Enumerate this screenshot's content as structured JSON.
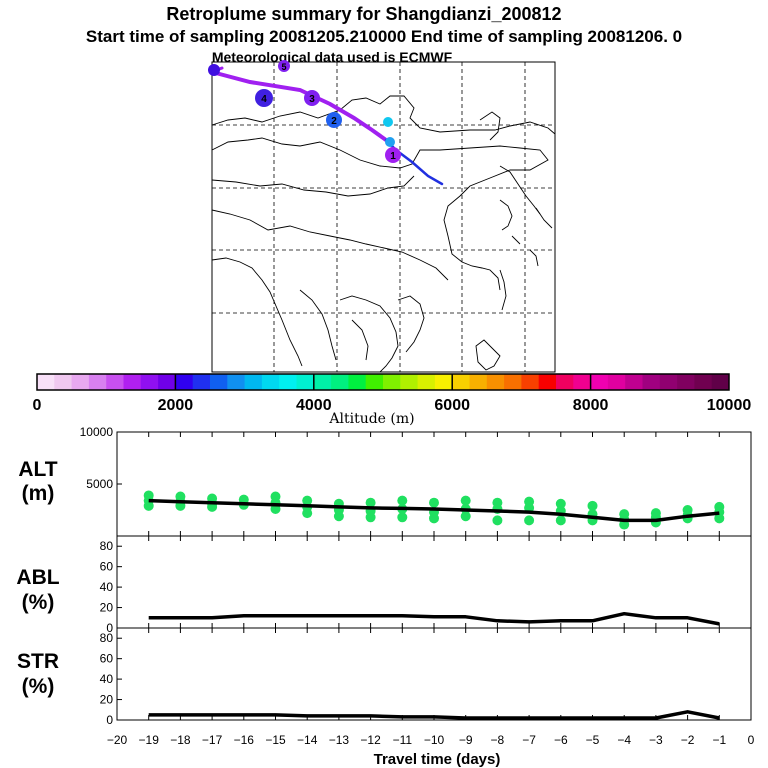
{
  "header": {
    "title": "Retroplume summary for Shangdianzi_200812",
    "sampling_line": "Start time of sampling 20081205.210000     End time of sampling 20081206.     0",
    "met_line": "Meteorological data used is ECMWF"
  },
  "map": {
    "trajectory_labels": [
      "1",
      "2",
      "3",
      "4",
      "5"
    ]
  },
  "colorbar": {
    "ticks": [
      "0",
      "2000",
      "4000",
      "6000",
      "8000",
      "10000"
    ],
    "label": "Altitude (m)",
    "colors": [
      "#f8e0f8",
      "#f0c8f0",
      "#e8a8f0",
      "#d880f0",
      "#c850f0",
      "#b020f0",
      "#9010f0",
      "#7000e8",
      "#3000f0",
      "#2030f0",
      "#1060f0",
      "#1090f0",
      "#00b8f0",
      "#00d8f0",
      "#00f0f0",
      "#00f0d0",
      "#00f0a8",
      "#00f080",
      "#00f040",
      "#40f000",
      "#80f000",
      "#b0f000",
      "#d8f000",
      "#f8f000",
      "#f8d000",
      "#f8b000",
      "#f89000",
      "#f87000",
      "#f84000",
      "#f80000",
      "#f00060",
      "#f00090",
      "#f000b0",
      "#e000a0",
      "#c00090",
      "#a00080",
      "#900070",
      "#800060",
      "#700050",
      "#600048"
    ]
  },
  "panels": {
    "alt": {
      "label1": "ALT",
      "label2": "(m)"
    },
    "abl": {
      "label1": "ABL",
      "label2": "(%)"
    },
    "str": {
      "label1": "STR",
      "label2": "(%)"
    }
  },
  "xaxis": {
    "label": "Travel time (days)"
  },
  "chart_data": [
    {
      "type": "line",
      "name": "ALT",
      "ylabel": "(m)",
      "ylim": [
        0,
        10000
      ],
      "yticks": [
        5000,
        10000
      ],
      "xlim": [
        -20,
        0
      ],
      "x": [
        -19,
        -18,
        -17,
        -16,
        -15,
        -14,
        -13,
        -12,
        -11,
        -10,
        -9,
        -8,
        -7,
        -6,
        -5,
        -4,
        -3,
        -2,
        -1
      ],
      "values": [
        3400,
        3300,
        3200,
        3100,
        3000,
        2900,
        2800,
        2700,
        2650,
        2600,
        2500,
        2400,
        2300,
        2100,
        1800,
        1500,
        1500,
        1900,
        2200
      ],
      "scatter_color": "#20e060",
      "scatter": [
        [
          -19,
          3900
        ],
        [
          -19,
          3400
        ],
        [
          -19,
          2900
        ],
        [
          -18,
          3800
        ],
        [
          -18,
          3300
        ],
        [
          -18,
          2900
        ],
        [
          -17,
          3600
        ],
        [
          -17,
          3100
        ],
        [
          -17,
          2800
        ],
        [
          -16,
          3500
        ],
        [
          -16,
          3000
        ],
        [
          -15,
          3800
        ],
        [
          -15,
          3200
        ],
        [
          -15,
          2600
        ],
        [
          -14,
          3400
        ],
        [
          -14,
          2800
        ],
        [
          -14,
          2200
        ],
        [
          -13,
          3100
        ],
        [
          -13,
          2500
        ],
        [
          -13,
          1900
        ],
        [
          -12,
          3200
        ],
        [
          -12,
          2400
        ],
        [
          -12,
          1800
        ],
        [
          -11,
          3400
        ],
        [
          -11,
          2600
        ],
        [
          -11,
          1800
        ],
        [
          -10,
          3200
        ],
        [
          -10,
          2300
        ],
        [
          -10,
          1700
        ],
        [
          -9,
          3400
        ],
        [
          -9,
          2600
        ],
        [
          -9,
          1900
        ],
        [
          -8,
          3200
        ],
        [
          -8,
          2600
        ],
        [
          -8,
          1500
        ],
        [
          -7,
          3300
        ],
        [
          -7,
          2700
        ],
        [
          -7,
          1500
        ],
        [
          -6,
          3100
        ],
        [
          -6,
          2400
        ],
        [
          -6,
          1500
        ],
        [
          -5,
          2900
        ],
        [
          -5,
          2100
        ],
        [
          -5,
          1500
        ],
        [
          -4,
          2100
        ],
        [
          -4,
          1600
        ],
        [
          -4,
          1100
        ],
        [
          -3,
          2200
        ],
        [
          -3,
          1800
        ],
        [
          -3,
          1300
        ],
        [
          -2,
          2500
        ],
        [
          -2,
          2000
        ],
        [
          -2,
          1700
        ],
        [
          -1,
          2800
        ],
        [
          -1,
          2300
        ],
        [
          -1,
          1700
        ]
      ]
    },
    {
      "type": "line",
      "name": "ABL",
      "ylabel": "(%)",
      "ylim": [
        0,
        90
      ],
      "yticks": [
        0,
        20,
        40,
        60,
        80
      ],
      "xlim": [
        -20,
        0
      ],
      "x": [
        -19,
        -18,
        -17,
        -16,
        -15,
        -14,
        -13,
        -12,
        -11,
        -10,
        -9,
        -8,
        -7,
        -6,
        -5,
        -4,
        -3,
        -2,
        -1
      ],
      "values": [
        10,
        10,
        10,
        12,
        12,
        12,
        12,
        12,
        12,
        11,
        11,
        7,
        6,
        7,
        7,
        14,
        10,
        10,
        4
      ]
    },
    {
      "type": "line",
      "name": "STR",
      "ylabel": "(%)",
      "ylim": [
        0,
        90
      ],
      "yticks": [
        0,
        20,
        40,
        60,
        80
      ],
      "xlim": [
        -20,
        0
      ],
      "xticks": [
        -20,
        -19,
        -18,
        -17,
        -16,
        -15,
        -14,
        -13,
        -12,
        -11,
        -10,
        -9,
        -8,
        -7,
        -6,
        -5,
        -4,
        -3,
        -2,
        -1,
        0
      ],
      "x": [
        -19,
        -18,
        -17,
        -16,
        -15,
        -14,
        -13,
        -12,
        -11,
        -10,
        -9,
        -8,
        -7,
        -6,
        -5,
        -4,
        -3,
        -2,
        -1
      ],
      "values": [
        5,
        5,
        5,
        5,
        5,
        4,
        4,
        4,
        3,
        3,
        2,
        2,
        2,
        2,
        2,
        2,
        2,
        8,
        2
      ]
    }
  ]
}
